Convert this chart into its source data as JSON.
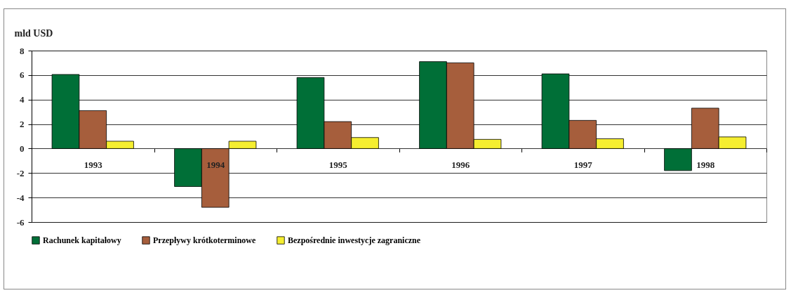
{
  "chart_data": {
    "type": "bar",
    "ylabel": "mld USD",
    "categories": [
      "1993",
      "1994",
      "1995",
      "1996",
      "1997",
      "1998"
    ],
    "series": [
      {
        "name": "Rachunek kapitałowy",
        "color": "#006f37",
        "values": [
          6.05,
          -3.1,
          5.8,
          7.1,
          6.1,
          -1.8
        ]
      },
      {
        "name": "Przepływy krótkoterminowe",
        "color": "#a65e3c",
        "values": [
          3.1,
          -4.8,
          2.2,
          7.0,
          2.3,
          3.3
        ]
      },
      {
        "name": "Bezpośrednie inwestycje zagraniczne",
        "color": "#f5ee30",
        "values": [
          0.6,
          0.6,
          0.9,
          0.75,
          0.8,
          0.95
        ]
      }
    ],
    "ylim": [
      -6,
      8
    ],
    "yticks": [
      -6,
      -4,
      -2,
      0,
      2,
      4,
      6,
      8
    ],
    "grid": "y",
    "legend": "bottom"
  }
}
